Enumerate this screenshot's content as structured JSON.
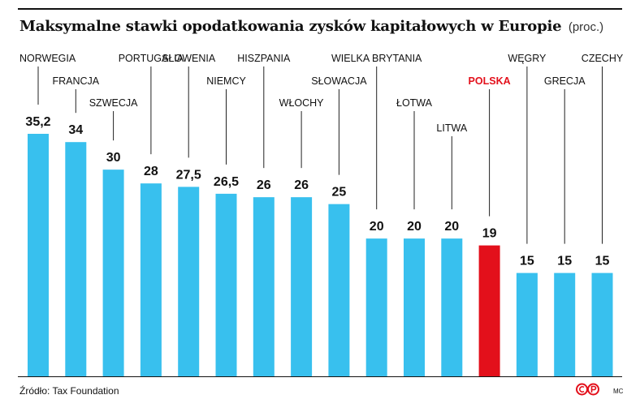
{
  "title": "Maksymalne stawki opodatkowania zysków kapitałowych w Europie",
  "unit": "(proc.)",
  "source": "Źródło: Tax Foundation",
  "credit": "MC",
  "colors": {
    "bar": "#38c0ee",
    "highlight": "#e3101b",
    "text": "#111111"
  },
  "chart_data": {
    "type": "bar",
    "title": "Maksymalne stawki opodatkowania zysków kapitałowych w Europie",
    "ylabel": "proc.",
    "ylim": [
      0,
      37
    ],
    "categories": [
      "NORWEGIA",
      "FRANCJA",
      "SZWECJA",
      "PORTUGALIA",
      "SŁOWENIA",
      "NIEMCY",
      "HISZPANIA",
      "WŁOCHY",
      "SŁOWACJA",
      "WIELKA BRYTANIA",
      "ŁOTWA",
      "LITWA",
      "POLSKA",
      "WĘGRY",
      "GRECJA",
      "CZECHY"
    ],
    "values": [
      35.2,
      34,
      30,
      28,
      27.5,
      26.5,
      26,
      26,
      25,
      20,
      20,
      20,
      19,
      15,
      15,
      15
    ],
    "value_labels": [
      "35,2",
      "34",
      "30",
      "28",
      "27,5",
      "26,5",
      "26",
      "26",
      "25",
      "20",
      "20",
      "20",
      "19",
      "15",
      "15",
      "15"
    ],
    "highlight": "POLSKA"
  }
}
